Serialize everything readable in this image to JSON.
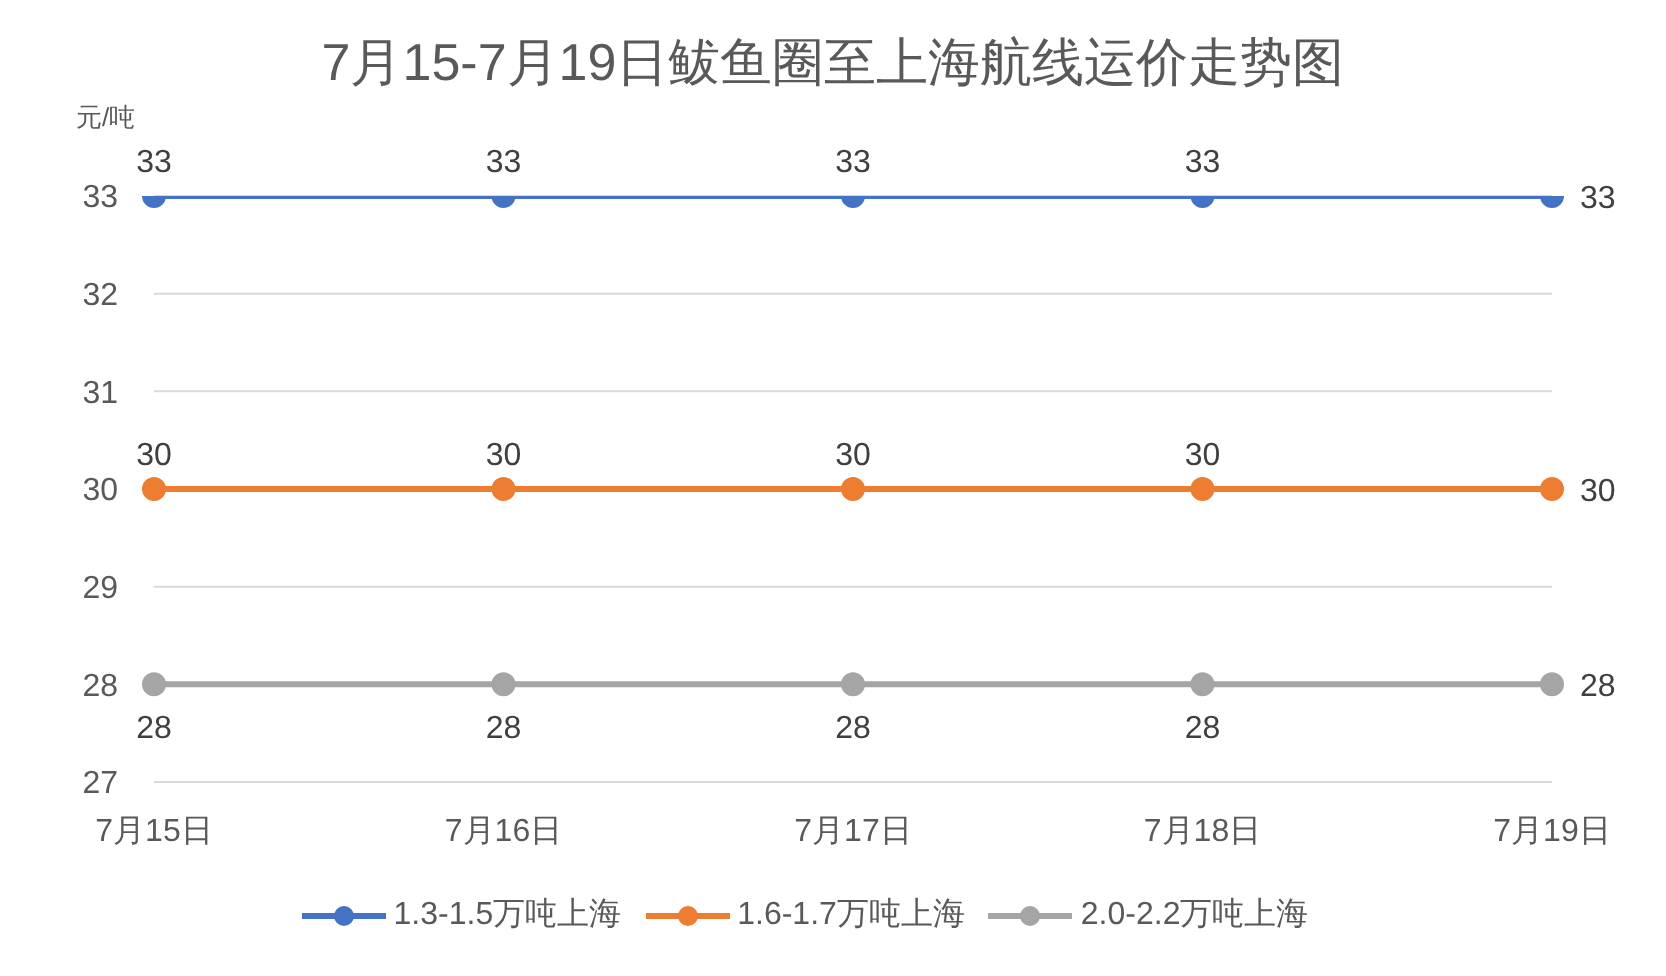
{
  "chart_data": {
    "type": "line",
    "title": "7月15-7月19日鲅鱼圈至上海航线运价走势图",
    "ylabel": "元/吨",
    "categories": [
      "7月15日",
      "7月16日",
      "7月17日",
      "7月18日",
      "7月19日"
    ],
    "series": [
      {
        "name": "1.3-1.5万吨上海",
        "color": "#4472c4",
        "values": [
          33,
          33,
          33,
          33,
          33
        ]
      },
      {
        "name": "1.6-1.7万吨上海",
        "color": "#ed7d31",
        "values": [
          30,
          30,
          30,
          30,
          30
        ]
      },
      {
        "name": "2.0-2.2万吨上海",
        "color": "#a5a5a5",
        "values": [
          28,
          28,
          28,
          28,
          28
        ]
      }
    ],
    "ylim": [
      27,
      33
    ],
    "yticks": [
      27,
      28,
      29,
      30,
      31,
      32,
      33
    ],
    "grid": "y",
    "legend": "bottom",
    "marker": "circle",
    "line_style": "solid",
    "data_labels": true
  }
}
